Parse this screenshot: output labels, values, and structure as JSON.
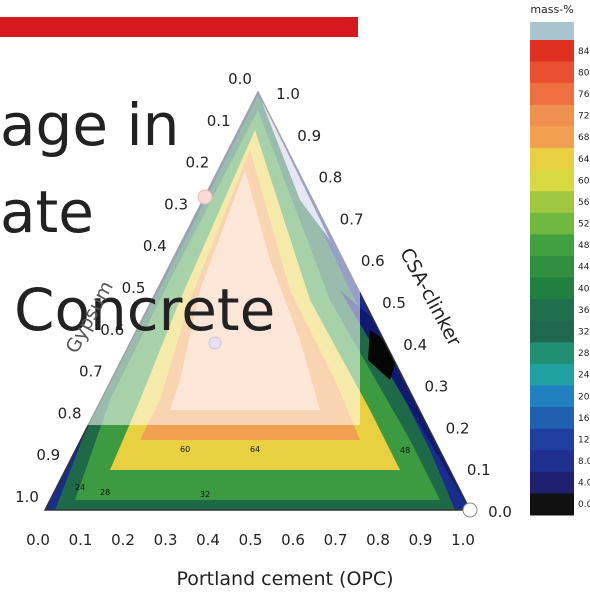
{
  "overlay_text": [
    "age in",
    "ate",
    "Concrete"
  ],
  "colorbar": {
    "title": "mass-%",
    "labels": [
      "84",
      "80",
      "76",
      "72",
      "68",
      "64",
      "60",
      "56",
      "52",
      "48",
      "44",
      "40",
      "36",
      "32",
      "28",
      "24",
      "20",
      "16",
      "12",
      "8.0",
      "4.0",
      "0.0"
    ]
  },
  "axes": {
    "bottom": {
      "label": "Portland cement (OPC)",
      "ticks": [
        "0.0",
        "0.1",
        "0.2",
        "0.3",
        "0.4",
        "0.5",
        "0.6",
        "0.7",
        "0.8",
        "0.9",
        "1.0"
      ]
    },
    "right": {
      "label": "CSA-clinker",
      "ticks": [
        "0.0",
        "0.1",
        "0.2",
        "0.3",
        "0.4",
        "0.5",
        "0.6",
        "0.7",
        "0.8",
        "0.9",
        "1.0"
      ]
    },
    "left": {
      "label": "Gypsum",
      "ticks": [
        "0.0",
        "0.1",
        "0.2",
        "0.3",
        "0.4",
        "0.5",
        "0.6",
        "0.7",
        "0.8",
        "0.9",
        "1.0"
      ]
    }
  },
  "contour_labels": [
    "60",
    "64",
    "48",
    "28",
    "32",
    "24"
  ]
}
